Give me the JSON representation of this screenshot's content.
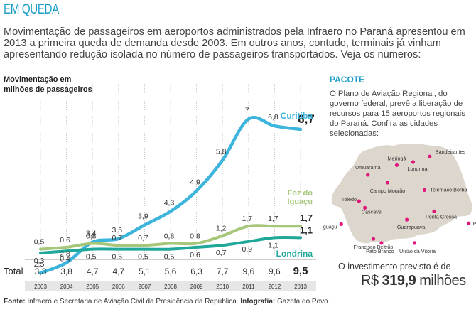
{
  "headline": "EM QUEDA",
  "intro": "Movimentação de passageiros em aeroportos administrados pela Infraero no Paraná apresentou em 2013 a primeira queda de demanda desde 2003. Em outros anos, contudo, terminais já vinham apresentando redução isolada no número de passageiros transportados. Veja os números:",
  "ylabel_line1": "Movimentação em",
  "ylabel_line2": "milhões de passageiros",
  "total_label": "Total",
  "sidebar": {
    "title": "PACOTE",
    "text": "O Plano de Aviação Regional, do governo federal, prevê a liberação de recursos para 15 aeroportos regionais do Paraná. Confira as cidades selecionadas:",
    "invest_label": "O investimento previsto é de",
    "invest_currency": "R$",
    "invest_amount": "319,9",
    "invest_unit": "milhões",
    "cities": [
      {
        "name": "Bandeirantes",
        "lon": -50.37,
        "lat": -23.11
      },
      {
        "name": "Maringá",
        "lon": -51.94,
        "lat": -23.42
      },
      {
        "name": "Umuarama",
        "lon": -53.32,
        "lat": -23.77
      },
      {
        "name": "Londrina",
        "lon": -51.16,
        "lat": -23.31
      },
      {
        "name": "Toledo",
        "lon": -53.74,
        "lat": -24.72
      },
      {
        "name": "Campo Mourão",
        "lon": -52.38,
        "lat": -24.05
      },
      {
        "name": "Telêmaco Borba",
        "lon": -50.62,
        "lat": -24.32
      },
      {
        "name": "Foz do Iguaçu",
        "lon": -54.59,
        "lat": -25.55
      },
      {
        "name": "Cascavel",
        "lon": -53.46,
        "lat": -24.96
      },
      {
        "name": "Guarapuava",
        "lon": -51.46,
        "lat": -25.39
      },
      {
        "name": "Ponta Grossa",
        "lon": -50.16,
        "lat": -25.09
      },
      {
        "name": "Paranaguá",
        "lon": -48.51,
        "lat": -25.52
      },
      {
        "name": "Francisco Beltrão",
        "lon": -53.06,
        "lat": -26.08
      },
      {
        "name": "Pato Branco",
        "lon": -52.67,
        "lat": -26.23
      },
      {
        "name": "União da Vitória",
        "lon": -51.09,
        "lat": -26.23
      }
    ]
  },
  "footer_fonte_label": "Fonte:",
  "footer_fonte": "Infraero e Secretaria de Aviação Civil da Presidência da República.",
  "footer_info_label": "Infografia:",
  "footer_info": "Gazeta do Povo.",
  "colors": {
    "curitiba": "#3db4dc",
    "foz": "#a6c77a",
    "londrina": "#1fa89a",
    "accent": "#1e9ec7",
    "map": "#ddd6cc",
    "city": "#e0177a"
  },
  "chart_data": {
    "type": "line",
    "x": [
      "2003",
      "2004",
      "2005",
      "2006",
      "2007",
      "2008",
      "2009",
      "2010",
      "2011",
      "2012",
      "2013"
    ],
    "ylabel": "Movimentação em milhões de passageiros",
    "series": [
      {
        "name": "Curitiba",
        "values": [
          2.5,
          2.8,
          3.4,
          3.5,
          3.9,
          4.3,
          4.9,
          5.8,
          7.0,
          6.8,
          6.7
        ],
        "labels": [
          "2,5",
          "2,8",
          "3,4",
          "3,5",
          "3,9",
          "4,3",
          "4,9",
          "5,8",
          "7",
          "6,8",
          "6,7"
        ]
      },
      {
        "name": "Foz do Iguaçu",
        "values": [
          0.5,
          0.6,
          0.8,
          0.7,
          0.7,
          0.8,
          0.8,
          1.2,
          1.7,
          1.7,
          1.7
        ],
        "labels": [
          "0,5",
          "0,6",
          "0,8",
          "0,7",
          "0,7",
          "0,8",
          "0,8",
          "1,2",
          "1,7",
          "1,7",
          "1,7"
        ]
      },
      {
        "name": "Londrina",
        "values": [
          0.3,
          0.4,
          0.5,
          0.5,
          0.5,
          0.5,
          0.6,
          0.7,
          0.9,
          1.1,
          1.1
        ],
        "labels": [
          "0,3",
          "0,4",
          "0,5",
          "0,5",
          "0,5",
          "0,5",
          "0,6",
          "0,7",
          "0,9",
          "1,1",
          "1,1"
        ]
      }
    ],
    "total": {
      "values": [
        3.3,
        3.8,
        4.7,
        4.7,
        5.1,
        5.6,
        6.3,
        7.7,
        9.6,
        9.6,
        9.5
      ],
      "labels": [
        "3,3",
        "3,8",
        "4,7",
        "4,7",
        "5,1",
        "5,6",
        "6,3",
        "7,7",
        "9,6",
        "9,6",
        "9,5"
      ]
    },
    "grid": true
  }
}
